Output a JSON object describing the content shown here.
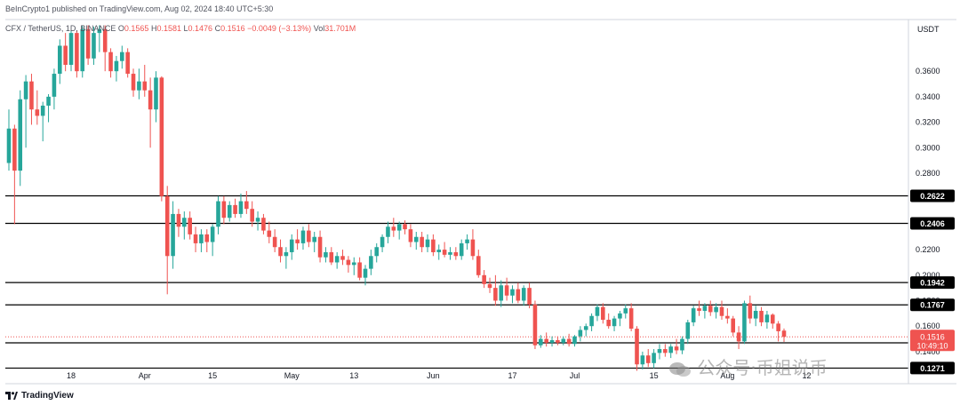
{
  "header": {
    "publisher_line": "BeInCrypto1 published on TradingView.com, Aug 02, 2024 18:40 UTC+5:30",
    "symbol": "CFX / TetherUS, 1D, BINANCE",
    "o_label": "O",
    "o_value": "0.1565",
    "h_label": "H",
    "h_value": "0.1581",
    "l_label": "L",
    "l_value": "0.1476",
    "c_label": "C",
    "c_value": "0.1516",
    "change": "−0.0049 (−3.13%)",
    "vol_label": "Vol",
    "vol_value": "31.701M"
  },
  "watermark": {
    "text": "公众号·币姐说币",
    "logo": "TradingView",
    "logo_icon": "tradingview-logo-icon"
  },
  "colors": {
    "up": "#26a69a",
    "down": "#ef5350",
    "level_line": "#000000",
    "price_label_bg": "#ef5350"
  },
  "chart_data": {
    "type": "candlestick",
    "currency_label": "USDT",
    "ylim": [
      0.126,
      0.388
    ],
    "y_ticks": [
      "0.3600",
      "0.3400",
      "0.3200",
      "0.3000",
      "0.2800",
      "0.2600",
      "0.2400",
      "0.2200",
      "0.2000",
      "0.1800",
      "0.1600",
      "0.1400"
    ],
    "x_ticks": [
      "18",
      "Apr",
      "15",
      "May",
      "13",
      "Jun",
      "17",
      "Jul",
      "15",
      "Aug",
      "12"
    ],
    "horizontal_levels": [
      "0.2622",
      "0.2406",
      "0.1942",
      "0.1767",
      "0.1469",
      "0.1271"
    ],
    "last_price": "0.1516",
    "countdown": "10:49:10",
    "candles": [
      {
        "o": 0.288,
        "h": 0.33,
        "l": 0.282,
        "c": 0.315
      },
      {
        "o": 0.315,
        "h": 0.318,
        "l": 0.24,
        "c": 0.282
      },
      {
        "o": 0.282,
        "h": 0.345,
        "l": 0.27,
        "c": 0.338
      },
      {
        "o": 0.338,
        "h": 0.357,
        "l": 0.3,
        "c": 0.352
      },
      {
        "o": 0.352,
        "h": 0.358,
        "l": 0.318,
        "c": 0.33
      },
      {
        "o": 0.33,
        "h": 0.345,
        "l": 0.318,
        "c": 0.325
      },
      {
        "o": 0.325,
        "h": 0.336,
        "l": 0.305,
        "c": 0.333
      },
      {
        "o": 0.333,
        "h": 0.342,
        "l": 0.32,
        "c": 0.34
      },
      {
        "o": 0.34,
        "h": 0.362,
        "l": 0.33,
        "c": 0.358
      },
      {
        "o": 0.358,
        "h": 0.385,
        "l": 0.35,
        "c": 0.38
      },
      {
        "o": 0.38,
        "h": 0.39,
        "l": 0.36,
        "c": 0.365
      },
      {
        "o": 0.365,
        "h": 0.392,
        "l": 0.36,
        "c": 0.39
      },
      {
        "o": 0.39,
        "h": 0.392,
        "l": 0.355,
        "c": 0.36
      },
      {
        "o": 0.36,
        "h": 0.396,
        "l": 0.355,
        "c": 0.393
      },
      {
        "o": 0.393,
        "h": 0.396,
        "l": 0.365,
        "c": 0.37
      },
      {
        "o": 0.37,
        "h": 0.395,
        "l": 0.365,
        "c": 0.39
      },
      {
        "o": 0.39,
        "h": 0.396,
        "l": 0.375,
        "c": 0.393
      },
      {
        "o": 0.393,
        "h": 0.396,
        "l": 0.36,
        "c": 0.375
      },
      {
        "o": 0.375,
        "h": 0.378,
        "l": 0.355,
        "c": 0.36
      },
      {
        "o": 0.36,
        "h": 0.372,
        "l": 0.352,
        "c": 0.368
      },
      {
        "o": 0.368,
        "h": 0.38,
        "l": 0.362,
        "c": 0.375
      },
      {
        "o": 0.375,
        "h": 0.378,
        "l": 0.355,
        "c": 0.358
      },
      {
        "o": 0.358,
        "h": 0.362,
        "l": 0.34,
        "c": 0.345
      },
      {
        "o": 0.345,
        "h": 0.362,
        "l": 0.338,
        "c": 0.352
      },
      {
        "o": 0.352,
        "h": 0.365,
        "l": 0.34,
        "c": 0.345
      },
      {
        "o": 0.345,
        "h": 0.355,
        "l": 0.3,
        "c": 0.33
      },
      {
        "o": 0.33,
        "h": 0.36,
        "l": 0.32,
        "c": 0.355
      },
      {
        "o": 0.355,
        "h": 0.356,
        "l": 0.258,
        "c": 0.262
      },
      {
        "o": 0.262,
        "h": 0.27,
        "l": 0.185,
        "c": 0.215
      },
      {
        "o": 0.215,
        "h": 0.258,
        "l": 0.205,
        "c": 0.248
      },
      {
        "o": 0.248,
        "h": 0.252,
        "l": 0.23,
        "c": 0.238
      },
      {
        "o": 0.238,
        "h": 0.25,
        "l": 0.228,
        "c": 0.245
      },
      {
        "o": 0.245,
        "h": 0.25,
        "l": 0.228,
        "c": 0.232
      },
      {
        "o": 0.232,
        "h": 0.238,
        "l": 0.218,
        "c": 0.225
      },
      {
        "o": 0.225,
        "h": 0.236,
        "l": 0.218,
        "c": 0.232
      },
      {
        "o": 0.232,
        "h": 0.236,
        "l": 0.218,
        "c": 0.226
      },
      {
        "o": 0.226,
        "h": 0.24,
        "l": 0.215,
        "c": 0.238
      },
      {
        "o": 0.238,
        "h": 0.262,
        "l": 0.232,
        "c": 0.258
      },
      {
        "o": 0.258,
        "h": 0.262,
        "l": 0.24,
        "c": 0.245
      },
      {
        "o": 0.245,
        "h": 0.258,
        "l": 0.242,
        "c": 0.255
      },
      {
        "o": 0.255,
        "h": 0.26,
        "l": 0.245,
        "c": 0.248
      },
      {
        "o": 0.248,
        "h": 0.264,
        "l": 0.245,
        "c": 0.258
      },
      {
        "o": 0.258,
        "h": 0.266,
        "l": 0.248,
        "c": 0.252
      },
      {
        "o": 0.252,
        "h": 0.258,
        "l": 0.238,
        "c": 0.242
      },
      {
        "o": 0.242,
        "h": 0.25,
        "l": 0.235,
        "c": 0.245
      },
      {
        "o": 0.245,
        "h": 0.248,
        "l": 0.232,
        "c": 0.235
      },
      {
        "o": 0.235,
        "h": 0.242,
        "l": 0.225,
        "c": 0.23
      },
      {
        "o": 0.23,
        "h": 0.236,
        "l": 0.218,
        "c": 0.222
      },
      {
        "o": 0.222,
        "h": 0.228,
        "l": 0.21,
        "c": 0.215
      },
      {
        "o": 0.215,
        "h": 0.222,
        "l": 0.205,
        "c": 0.218
      },
      {
        "o": 0.218,
        "h": 0.232,
        "l": 0.212,
        "c": 0.228
      },
      {
        "o": 0.228,
        "h": 0.236,
        "l": 0.22,
        "c": 0.225
      },
      {
        "o": 0.225,
        "h": 0.238,
        "l": 0.22,
        "c": 0.235
      },
      {
        "o": 0.235,
        "h": 0.24,
        "l": 0.222,
        "c": 0.226
      },
      {
        "o": 0.226,
        "h": 0.234,
        "l": 0.218,
        "c": 0.23
      },
      {
        "o": 0.23,
        "h": 0.235,
        "l": 0.21,
        "c": 0.214
      },
      {
        "o": 0.214,
        "h": 0.222,
        "l": 0.21,
        "c": 0.218
      },
      {
        "o": 0.218,
        "h": 0.222,
        "l": 0.208,
        "c": 0.21
      },
      {
        "o": 0.21,
        "h": 0.218,
        "l": 0.205,
        "c": 0.215
      },
      {
        "o": 0.215,
        "h": 0.22,
        "l": 0.208,
        "c": 0.212
      },
      {
        "o": 0.212,
        "h": 0.215,
        "l": 0.202,
        "c": 0.208
      },
      {
        "o": 0.208,
        "h": 0.214,
        "l": 0.2,
        "c": 0.21
      },
      {
        "o": 0.21,
        "h": 0.214,
        "l": 0.196,
        "c": 0.198
      },
      {
        "o": 0.198,
        "h": 0.208,
        "l": 0.192,
        "c": 0.205
      },
      {
        "o": 0.205,
        "h": 0.22,
        "l": 0.2,
        "c": 0.215
      },
      {
        "o": 0.215,
        "h": 0.225,
        "l": 0.21,
        "c": 0.222
      },
      {
        "o": 0.222,
        "h": 0.232,
        "l": 0.218,
        "c": 0.23
      },
      {
        "o": 0.23,
        "h": 0.242,
        "l": 0.225,
        "c": 0.238
      },
      {
        "o": 0.238,
        "h": 0.245,
        "l": 0.23,
        "c": 0.235
      },
      {
        "o": 0.235,
        "h": 0.242,
        "l": 0.228,
        "c": 0.24
      },
      {
        "o": 0.24,
        "h": 0.243,
        "l": 0.232,
        "c": 0.236
      },
      {
        "o": 0.236,
        "h": 0.24,
        "l": 0.222,
        "c": 0.226
      },
      {
        "o": 0.226,
        "h": 0.234,
        "l": 0.22,
        "c": 0.23
      },
      {
        "o": 0.23,
        "h": 0.234,
        "l": 0.218,
        "c": 0.222
      },
      {
        "o": 0.222,
        "h": 0.232,
        "l": 0.218,
        "c": 0.228
      },
      {
        "o": 0.228,
        "h": 0.232,
        "l": 0.215,
        "c": 0.218
      },
      {
        "o": 0.218,
        "h": 0.224,
        "l": 0.212,
        "c": 0.22
      },
      {
        "o": 0.22,
        "h": 0.226,
        "l": 0.214,
        "c": 0.216
      },
      {
        "o": 0.216,
        "h": 0.222,
        "l": 0.212,
        "c": 0.218
      },
      {
        "o": 0.218,
        "h": 0.222,
        "l": 0.212,
        "c": 0.215
      },
      {
        "o": 0.215,
        "h": 0.228,
        "l": 0.212,
        "c": 0.225
      },
      {
        "o": 0.225,
        "h": 0.232,
        "l": 0.22,
        "c": 0.228
      },
      {
        "o": 0.228,
        "h": 0.236,
        "l": 0.212,
        "c": 0.215
      },
      {
        "o": 0.215,
        "h": 0.22,
        "l": 0.198,
        "c": 0.2
      },
      {
        "o": 0.2,
        "h": 0.204,
        "l": 0.19,
        "c": 0.193
      },
      {
        "o": 0.193,
        "h": 0.198,
        "l": 0.186,
        "c": 0.19
      },
      {
        "o": 0.19,
        "h": 0.2,
        "l": 0.176,
        "c": 0.18
      },
      {
        "o": 0.18,
        "h": 0.196,
        "l": 0.175,
        "c": 0.192
      },
      {
        "o": 0.192,
        "h": 0.198,
        "l": 0.18,
        "c": 0.184
      },
      {
        "o": 0.184,
        "h": 0.192,
        "l": 0.178,
        "c": 0.189
      },
      {
        "o": 0.189,
        "h": 0.194,
        "l": 0.178,
        "c": 0.18
      },
      {
        "o": 0.18,
        "h": 0.192,
        "l": 0.176,
        "c": 0.19
      },
      {
        "o": 0.19,
        "h": 0.194,
        "l": 0.174,
        "c": 0.177
      },
      {
        "o": 0.177,
        "h": 0.18,
        "l": 0.142,
        "c": 0.145
      },
      {
        "o": 0.145,
        "h": 0.153,
        "l": 0.143,
        "c": 0.15
      },
      {
        "o": 0.15,
        "h": 0.155,
        "l": 0.144,
        "c": 0.147
      },
      {
        "o": 0.147,
        "h": 0.152,
        "l": 0.144,
        "c": 0.149
      },
      {
        "o": 0.149,
        "h": 0.152,
        "l": 0.145,
        "c": 0.147
      },
      {
        "o": 0.147,
        "h": 0.152,
        "l": 0.145,
        "c": 0.15
      },
      {
        "o": 0.15,
        "h": 0.154,
        "l": 0.144,
        "c": 0.146
      },
      {
        "o": 0.146,
        "h": 0.153,
        "l": 0.144,
        "c": 0.152
      },
      {
        "o": 0.152,
        "h": 0.16,
        "l": 0.148,
        "c": 0.157
      },
      {
        "o": 0.157,
        "h": 0.162,
        "l": 0.152,
        "c": 0.16
      },
      {
        "o": 0.16,
        "h": 0.17,
        "l": 0.156,
        "c": 0.168
      },
      {
        "o": 0.168,
        "h": 0.177,
        "l": 0.164,
        "c": 0.175
      },
      {
        "o": 0.175,
        "h": 0.178,
        "l": 0.162,
        "c": 0.165
      },
      {
        "o": 0.165,
        "h": 0.17,
        "l": 0.158,
        "c": 0.16
      },
      {
        "o": 0.16,
        "h": 0.168,
        "l": 0.156,
        "c": 0.166
      },
      {
        "o": 0.166,
        "h": 0.172,
        "l": 0.16,
        "c": 0.17
      },
      {
        "o": 0.17,
        "h": 0.177,
        "l": 0.166,
        "c": 0.174
      },
      {
        "o": 0.174,
        "h": 0.178,
        "l": 0.156,
        "c": 0.158
      },
      {
        "o": 0.158,
        "h": 0.16,
        "l": 0.125,
        "c": 0.13
      },
      {
        "o": 0.13,
        "h": 0.14,
        "l": 0.126,
        "c": 0.137
      },
      {
        "o": 0.137,
        "h": 0.142,
        "l": 0.128,
        "c": 0.131
      },
      {
        "o": 0.131,
        "h": 0.142,
        "l": 0.127,
        "c": 0.139
      },
      {
        "o": 0.139,
        "h": 0.146,
        "l": 0.134,
        "c": 0.142
      },
      {
        "o": 0.142,
        "h": 0.146,
        "l": 0.136,
        "c": 0.139
      },
      {
        "o": 0.139,
        "h": 0.146,
        "l": 0.135,
        "c": 0.144
      },
      {
        "o": 0.144,
        "h": 0.15,
        "l": 0.138,
        "c": 0.141
      },
      {
        "o": 0.141,
        "h": 0.152,
        "l": 0.138,
        "c": 0.15
      },
      {
        "o": 0.15,
        "h": 0.165,
        "l": 0.146,
        "c": 0.163
      },
      {
        "o": 0.163,
        "h": 0.176,
        "l": 0.16,
        "c": 0.174
      },
      {
        "o": 0.174,
        "h": 0.18,
        "l": 0.168,
        "c": 0.172
      },
      {
        "o": 0.172,
        "h": 0.178,
        "l": 0.166,
        "c": 0.176
      },
      {
        "o": 0.176,
        "h": 0.18,
        "l": 0.168,
        "c": 0.171
      },
      {
        "o": 0.171,
        "h": 0.178,
        "l": 0.166,
        "c": 0.175
      },
      {
        "o": 0.175,
        "h": 0.18,
        "l": 0.165,
        "c": 0.168
      },
      {
        "o": 0.168,
        "h": 0.174,
        "l": 0.162,
        "c": 0.166
      },
      {
        "o": 0.166,
        "h": 0.168,
        "l": 0.152,
        "c": 0.155
      },
      {
        "o": 0.155,
        "h": 0.16,
        "l": 0.142,
        "c": 0.148
      },
      {
        "o": 0.148,
        "h": 0.18,
        "l": 0.146,
        "c": 0.178
      },
      {
        "o": 0.178,
        "h": 0.184,
        "l": 0.162,
        "c": 0.166
      },
      {
        "o": 0.166,
        "h": 0.176,
        "l": 0.16,
        "c": 0.172
      },
      {
        "o": 0.172,
        "h": 0.175,
        "l": 0.16,
        "c": 0.163
      },
      {
        "o": 0.163,
        "h": 0.172,
        "l": 0.158,
        "c": 0.169
      },
      {
        "o": 0.169,
        "h": 0.17,
        "l": 0.158,
        "c": 0.162
      },
      {
        "o": 0.162,
        "h": 0.164,
        "l": 0.148,
        "c": 0.156
      },
      {
        "o": 0.1565,
        "h": 0.1581,
        "l": 0.1476,
        "c": 0.1516
      }
    ]
  }
}
